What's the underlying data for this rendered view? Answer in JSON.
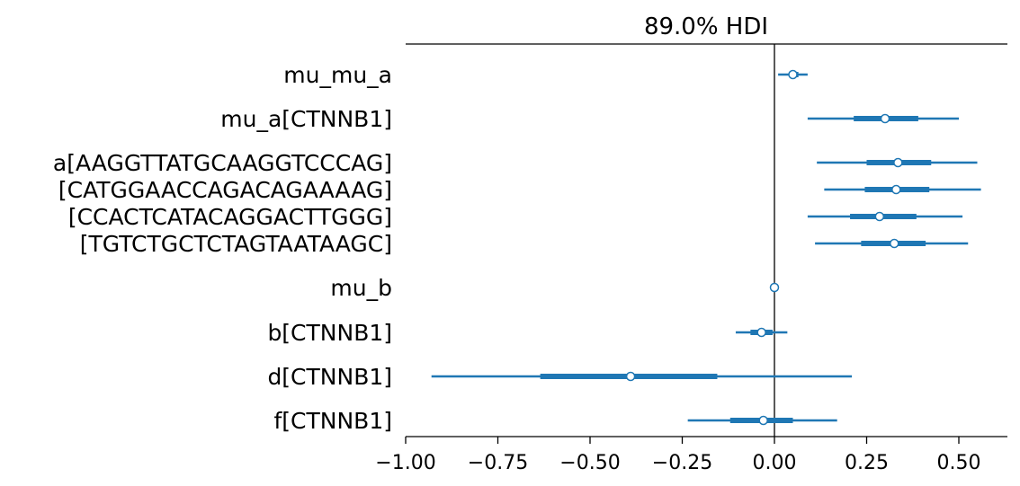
{
  "chart_data": {
    "type": "forest",
    "title": "89.0% HDI",
    "xlim": [
      -1.0,
      0.63
    ],
    "xticks": [
      "−1.00",
      "−0.75",
      "−0.50",
      "−0.25",
      "0.00",
      "0.25",
      "0.50"
    ],
    "xtick_values": [
      -1.0,
      -0.75,
      -0.5,
      -0.25,
      0.0,
      0.25,
      0.5
    ],
    "reference_line": 0.0,
    "color": "#1f77b4",
    "groups": [
      {
        "label_lines": [
          "mu_mu_a"
        ],
        "rows": [
          {
            "mean": 0.05,
            "hdi_low": 0.01,
            "hdi_high": 0.09,
            "iqr_low": 0.04,
            "iqr_high": 0.065
          }
        ]
      },
      {
        "label_lines": [
          "mu_a[CTNNB1]"
        ],
        "rows": [
          {
            "mean": 0.3,
            "hdi_low": 0.09,
            "hdi_high": 0.5,
            "iqr_low": 0.215,
            "iqr_high": 0.39
          }
        ]
      },
      {
        "label_lines": [
          "a[AAGGTTATGCAAGGTCCCAG]",
          "[CATGGAACCAGACAGAAAAG]",
          "[CCACTCATACAGGACTTGGG]",
          "[TGTCTGCTCTAGTAATAAGC]"
        ],
        "rows": [
          {
            "mean": 0.335,
            "hdi_low": 0.115,
            "hdi_high": 0.55,
            "iqr_low": 0.25,
            "iqr_high": 0.425
          },
          {
            "mean": 0.33,
            "hdi_low": 0.135,
            "hdi_high": 0.56,
            "iqr_low": 0.245,
            "iqr_high": 0.42
          },
          {
            "mean": 0.285,
            "hdi_low": 0.09,
            "hdi_high": 0.51,
            "iqr_low": 0.205,
            "iqr_high": 0.385
          },
          {
            "mean": 0.325,
            "hdi_low": 0.11,
            "hdi_high": 0.525,
            "iqr_low": 0.235,
            "iqr_high": 0.41
          }
        ]
      },
      {
        "label_lines": [
          "mu_b"
        ],
        "rows": [
          {
            "mean": 0.0,
            "hdi_low": -0.002,
            "hdi_high": 0.002,
            "iqr_low": -0.001,
            "iqr_high": 0.001
          }
        ]
      },
      {
        "label_lines": [
          "b[CTNNB1]"
        ],
        "rows": [
          {
            "mean": -0.035,
            "hdi_low": -0.105,
            "hdi_high": 0.035,
            "iqr_low": -0.065,
            "iqr_high": -0.005
          }
        ]
      },
      {
        "label_lines": [
          "d[CTNNB1]"
        ],
        "rows": [
          {
            "mean": -0.39,
            "hdi_low": -0.93,
            "hdi_high": 0.21,
            "iqr_low": -0.635,
            "iqr_high": -0.155
          }
        ]
      },
      {
        "label_lines": [
          "f[CTNNB1]"
        ],
        "rows": [
          {
            "mean": -0.03,
            "hdi_low": -0.235,
            "hdi_high": 0.17,
            "iqr_low": -0.12,
            "iqr_high": 0.05
          }
        ]
      }
    ]
  }
}
